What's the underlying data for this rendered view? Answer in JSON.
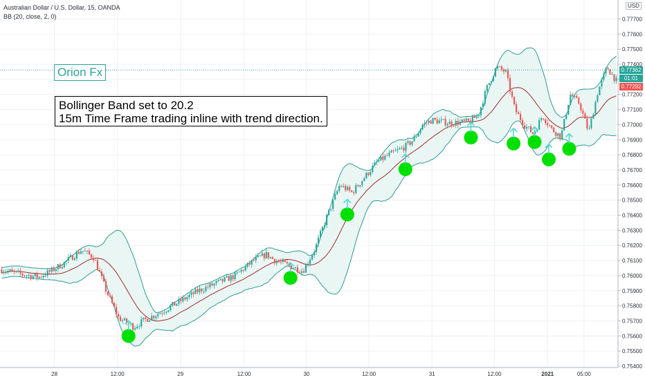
{
  "header": {
    "symbol_line": "Australian Dollar / U.S. Dollar, 15, OANDA",
    "indicator_line": "BB (20, close, 2, 0)"
  },
  "annotations": {
    "brand": "Orion Fx",
    "note_line1": "Bollinger Band set to 20.2",
    "note_line2": "15m Time Frame trading inline with trend direction."
  },
  "price_scale": {
    "currency": "USD",
    "last_price": "0.77362",
    "countdown": "01:01",
    "mid_price": "0.77292"
  },
  "colors": {
    "up": "#26a69a",
    "down": "#ef5350",
    "band": "#2b9c94",
    "band_fill": "#e8f5f3",
    "basis": "#a0282a",
    "signal": "#00e000",
    "arrow": "#46d9d1",
    "tag_last": "#26a69a",
    "tag_mid": "#ef5350",
    "tag_countdown": "#26a69a"
  },
  "chart_data": {
    "type": "candlestick",
    "title": "Australian Dollar / U.S. Dollar, 15, OANDA",
    "ylim": [
      0.7539,
      0.7779
    ],
    "y_ticks": [
      "0.77700",
      "0.77600",
      "0.77500",
      "0.77400",
      "0.77300",
      "0.77200",
      "0.77100",
      "0.77000",
      "0.76900",
      "0.76800",
      "0.76700",
      "0.76600",
      "0.76500",
      "0.76400",
      "0.76300",
      "0.76200",
      "0.76100",
      "0.76000",
      "0.75900",
      "0.75800",
      "0.75700",
      "0.75600",
      "0.75500",
      "0.75400"
    ],
    "x_ticks": [
      "28",
      "12:00",
      "29",
      "12:00",
      "30",
      "12:00",
      "31",
      "12:00",
      "2021",
      "05:00"
    ],
    "price_path": [
      [
        0.0,
        0.7604
      ],
      [
        0.03,
        0.7601
      ],
      [
        0.06,
        0.7599
      ],
      [
        0.08,
        0.7603
      ],
      [
        0.1,
        0.7608
      ],
      [
        0.13,
        0.7617
      ],
      [
        0.15,
        0.7612
      ],
      [
        0.17,
        0.759
      ],
      [
        0.19,
        0.7572
      ],
      [
        0.215,
        0.7566
      ],
      [
        0.23,
        0.757
      ],
      [
        0.26,
        0.7576
      ],
      [
        0.29,
        0.7583
      ],
      [
        0.32,
        0.759
      ],
      [
        0.35,
        0.7595
      ],
      [
        0.38,
        0.76
      ],
      [
        0.41,
        0.761
      ],
      [
        0.43,
        0.7614
      ],
      [
        0.445,
        0.761
      ],
      [
        0.465,
        0.7607
      ],
      [
        0.49,
        0.7603
      ],
      [
        0.51,
        0.7618
      ],
      [
        0.53,
        0.764
      ],
      [
        0.55,
        0.766
      ],
      [
        0.57,
        0.7655
      ],
      [
        0.59,
        0.7665
      ],
      [
        0.61,
        0.7675
      ],
      [
        0.63,
        0.768
      ],
      [
        0.655,
        0.7685
      ],
      [
        0.67,
        0.769
      ],
      [
        0.685,
        0.77
      ],
      [
        0.7,
        0.7703
      ],
      [
        0.73,
        0.7701
      ],
      [
        0.76,
        0.7702
      ],
      [
        0.775,
        0.7706
      ],
      [
        0.79,
        0.7725
      ],
      [
        0.805,
        0.7738
      ],
      [
        0.82,
        0.7735
      ],
      [
        0.835,
        0.771
      ],
      [
        0.85,
        0.77
      ],
      [
        0.865,
        0.7694
      ],
      [
        0.88,
        0.7706
      ],
      [
        0.895,
        0.7697
      ],
      [
        0.91,
        0.7692
      ],
      [
        0.925,
        0.772
      ],
      [
        0.94,
        0.7714
      ],
      [
        0.955,
        0.7695
      ],
      [
        0.97,
        0.7722
      ],
      [
        0.985,
        0.7738
      ],
      [
        1.0,
        0.7729
      ]
    ],
    "signals": [
      {
        "t": 0.208,
        "price": 0.756
      },
      {
        "t": 0.47,
        "price": 0.75985
      },
      {
        "t": 0.562,
        "price": 0.76405
      },
      {
        "t": 0.656,
        "price": 0.76705
      },
      {
        "t": 0.762,
        "price": 0.76915
      },
      {
        "t": 0.831,
        "price": 0.76875
      },
      {
        "t": 0.865,
        "price": 0.76885
      },
      {
        "t": 0.888,
        "price": 0.7677
      },
      {
        "t": 0.921,
        "price": 0.7684
      }
    ]
  }
}
